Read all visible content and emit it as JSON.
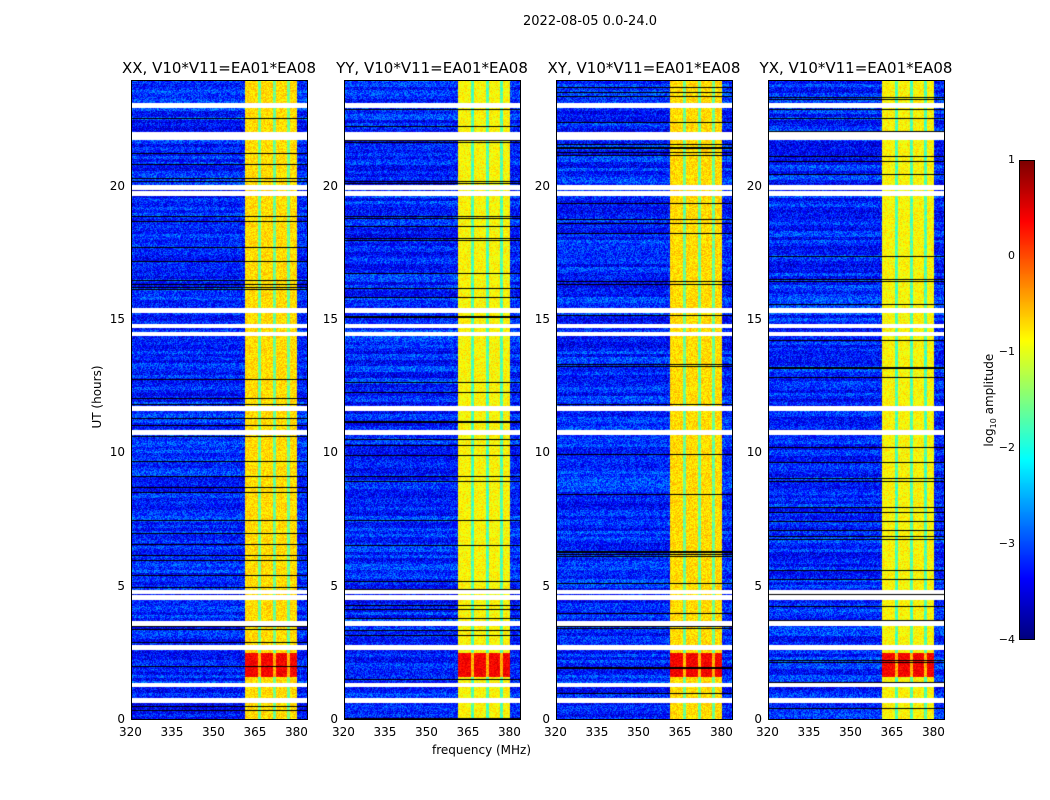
{
  "chart_data": {
    "type": "heatmap",
    "title": "2022-08-05 0.0-24.0",
    "xlabel": "frequency (MHz)",
    "ylabel": "UT (hours)",
    "xlim": [
      320,
      384
    ],
    "ylim": [
      0,
      24
    ],
    "xticks": [
      "320",
      "335",
      "350",
      "365",
      "380"
    ],
    "xtick_values": [
      320,
      335,
      350,
      365,
      380
    ],
    "yticks": [
      "0",
      "5",
      "10",
      "15",
      "20"
    ],
    "ytick_values": [
      0,
      5,
      10,
      15,
      20
    ],
    "panels": [
      {
        "title": "XX, V10*V11=EA01*EA08"
      },
      {
        "title": "YY, V10*V11=EA01*EA08"
      },
      {
        "title": "XY, V10*V11=EA01*EA08"
      },
      {
        "title": "YX, V10*V11=EA01*EA08"
      }
    ],
    "bright_band_mhz": [
      361,
      380
    ],
    "band_level_log10": -0.7,
    "background_level_log10": -3.2,
    "strong_period_hours": [
      1.6,
      2.5
    ],
    "strong_level_log10": 0.4,
    "flagged_rows_hours": [
      0.7,
      1.3,
      2.7,
      3.6,
      4.6,
      4.8,
      10.8,
      11.7,
      14.5,
      14.8,
      15.4,
      19.8,
      20.0,
      21.9,
      22.0,
      23.1
    ],
    "colorbar": {
      "label_prefix": "log",
      "label_sub": "10",
      "label_suffix": " amplitude",
      "range": [
        -4,
        1
      ],
      "ticks": [
        "1",
        "0",
        "−1",
        "−2",
        "−3",
        "−4"
      ],
      "tick_values": [
        1,
        0,
        -1,
        -2,
        -3,
        -4
      ],
      "colormap": "jet"
    }
  }
}
